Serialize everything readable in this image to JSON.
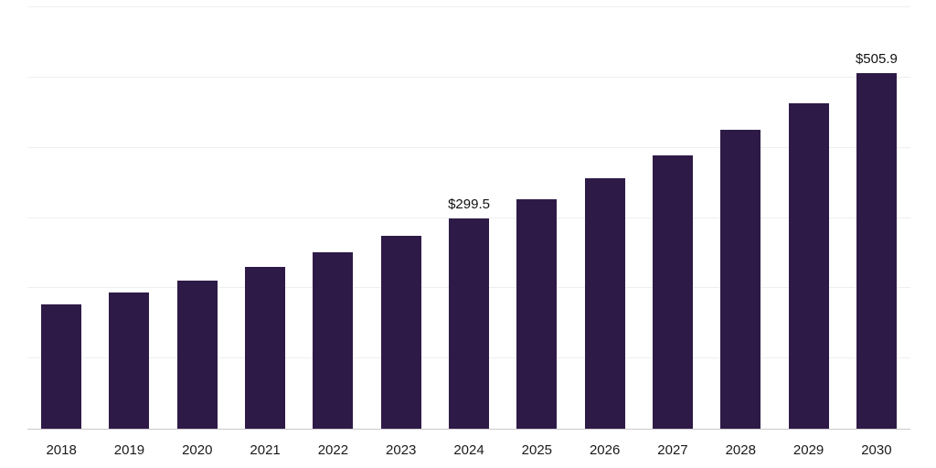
{
  "chart_data": {
    "type": "bar",
    "categories": [
      "2018",
      "2019",
      "2020",
      "2021",
      "2022",
      "2023",
      "2024",
      "2025",
      "2026",
      "2027",
      "2028",
      "2029",
      "2030"
    ],
    "values": [
      177.2,
      193.4,
      211.1,
      230.4,
      251.4,
      274.4,
      299.5,
      326.9,
      356.8,
      389.4,
      425.0,
      463.8,
      505.9
    ],
    "point_labels": [
      "",
      "",
      "",
      "",
      "",
      "",
      "$299.5",
      "",
      "",
      "",
      "",
      "",
      "$505.9"
    ],
    "title": "",
    "xlabel": "",
    "ylabel": "",
    "ylim": [
      0,
      600
    ],
    "gridline_step": 100,
    "grid": true,
    "legend": false,
    "bar_color": "#2e1a47",
    "gridline_color": "#efefef",
    "baseline_color": "#c9c9c9",
    "tick_label_color": "#1a1a1a"
  }
}
